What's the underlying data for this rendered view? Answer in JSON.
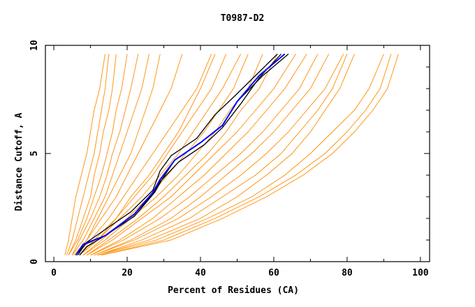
{
  "chart_data": {
    "type": "line",
    "title": "T0987-D2",
    "xlabel": "Percent of Residues (CA)",
    "ylabel": "Distance Cutoff, A",
    "xlim": [
      -2.3,
      102.5
    ],
    "ylim": [
      0,
      10
    ],
    "xticks": [
      0,
      20,
      40,
      60,
      80,
      100
    ],
    "xtick_labels": [
      "0",
      "20",
      "40",
      "60",
      "80",
      "100"
    ],
    "yticks": [
      0,
      5,
      10
    ],
    "ytick_labels": [
      "0",
      "5",
      "10"
    ],
    "grid": false,
    "colors": {
      "others": "#ff8c00",
      "highlight": "#0000ff",
      "reference": "#000000",
      "frame": "#000000"
    },
    "orange_y_levels": [
      0.3,
      1,
      2,
      3,
      4,
      5,
      6,
      7,
      8,
      9.6
    ],
    "orange_series_x": [
      [
        3,
        4,
        5,
        6,
        7.5,
        9,
        10,
        11,
        12.5,
        14
      ],
      [
        3.5,
        5,
        6.5,
        8,
        9.5,
        11,
        12,
        13,
        14,
        15
      ],
      [
        4,
        6,
        8,
        10,
        11,
        12.5,
        13.5,
        15,
        16,
        17
      ],
      [
        4,
        6.5,
        9,
        11,
        13,
        14.5,
        16,
        17,
        18.5,
        20
      ],
      [
        5,
        7,
        10,
        12.5,
        14.5,
        16,
        18,
        19.5,
        21,
        23
      ],
      [
        5,
        8,
        11,
        14,
        16,
        18,
        20,
        22,
        24,
        26
      ],
      [
        5.5,
        9,
        12,
        15,
        18,
        21,
        23,
        25,
        27,
        29
      ],
      [
        6,
        9,
        13,
        17,
        20,
        23,
        26,
        29,
        32,
        35
      ],
      [
        7,
        12,
        17,
        21,
        26,
        30,
        34,
        37,
        40,
        44
      ],
      [
        6,
        10,
        15,
        19,
        23,
        27,
        31,
        35,
        39,
        43
      ],
      [
        7,
        11,
        17,
        22,
        27,
        31,
        35,
        39,
        43,
        47
      ],
      [
        7,
        12,
        18,
        24,
        29,
        34,
        38,
        42,
        46,
        51
      ],
      [
        8,
        13,
        20,
        26,
        31,
        36,
        41,
        45,
        49,
        53
      ],
      [
        8,
        14,
        21,
        28,
        34,
        39,
        44,
        48,
        53,
        57
      ],
      [
        9,
        15,
        23,
        30,
        36,
        42,
        47,
        51,
        56,
        61
      ],
      [
        9,
        16,
        24,
        32,
        38,
        44,
        50,
        55,
        60,
        66
      ],
      [
        10,
        18,
        27,
        34,
        41,
        47,
        53,
        58,
        63,
        69
      ],
      [
        10,
        19,
        29,
        37,
        44,
        51,
        57,
        62,
        67,
        72
      ],
      [
        11,
        21,
        32,
        40,
        47,
        54,
        60,
        65,
        70,
        75
      ],
      [
        11,
        22,
        34,
        43,
        51,
        58,
        64,
        69,
        74,
        79
      ],
      [
        12,
        24,
        37,
        46,
        55,
        62,
        67,
        72,
        76,
        80
      ],
      [
        12,
        26,
        40,
        50,
        58,
        65,
        70,
        74,
        78,
        82
      ],
      [
        12,
        28,
        42,
        54,
        63,
        70,
        76,
        82,
        86,
        90
      ],
      [
        13,
        30,
        44,
        56,
        66,
        74,
        80,
        85,
        89,
        92
      ],
      [
        13,
        32,
        46,
        58,
        68,
        76,
        82,
        87,
        91,
        94
      ]
    ],
    "reference_series": [
      {
        "name": "black-1",
        "x": [
          6,
          9,
          15,
          21,
          27,
          29,
          32,
          39,
          44,
          49,
          55,
          61
        ],
        "y": [
          0.3,
          0.9,
          1.6,
          2.3,
          3.3,
          4.2,
          4.9,
          5.7,
          6.8,
          7.6,
          8.6,
          9.6
        ]
      },
      {
        "name": "black-2",
        "x": [
          6.5,
          8.5,
          14,
          22,
          27.5,
          29.5,
          33,
          40,
          46,
          50,
          57,
          64
        ],
        "y": [
          0.3,
          0.8,
          1.2,
          2.2,
          3.2,
          3.8,
          4.7,
          5.5,
          6.3,
          7.4,
          8.6,
          9.6
        ]
      },
      {
        "name": "black-3",
        "x": [
          7,
          9,
          14,
          22,
          27,
          29,
          34,
          41,
          46,
          51,
          56,
          62
        ],
        "y": [
          0.3,
          0.7,
          1.2,
          2.1,
          3.1,
          3.7,
          4.6,
          5.4,
          6.2,
          7.3,
          8.5,
          9.6
        ]
      }
    ],
    "highlight_series": {
      "name": "blue",
      "x": [
        6,
        8,
        14,
        22,
        27,
        29,
        33,
        40,
        46,
        50,
        56,
        63
      ],
      "y": [
        0.3,
        0.8,
        1.2,
        2.2,
        3.2,
        3.8,
        4.7,
        5.5,
        6.3,
        7.4,
        8.6,
        9.6
      ]
    }
  }
}
